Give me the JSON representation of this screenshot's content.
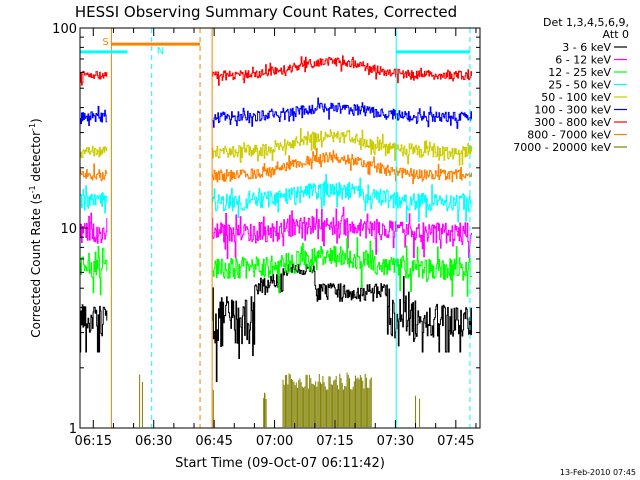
{
  "chart_data": {
    "type": "line",
    "title": "HESSI Observing Summary Count Rates, Corrected",
    "xlabel": "Start Time (09-Oct-07 06:11:42)",
    "ylabel": "Corrected Count Rate (s⁻¹ detector⁻¹)",
    "ylabel_plain": "Corrected Count Rate (s",
    "ylabel_sup1": "-1",
    "ylabel_mid": " detector",
    "ylabel_sup2": "-1",
    "ylabel_end": ")",
    "x_tick_labels": [
      "06:15",
      "06:30",
      "06:45",
      "07:00",
      "07:15",
      "07:30",
      "07:45"
    ],
    "x_tick_minutes": [
      15,
      30,
      45,
      60,
      75,
      90,
      105
    ],
    "x_range_minutes": [
      11.7,
      111
    ],
    "y_scale": "log",
    "y_tick_labels": [
      "1",
      "10",
      "100"
    ],
    "ylim": [
      1,
      100
    ],
    "legend_title_lines": [
      "Det 1,3,4,5,6,9,",
      "Att 0"
    ],
    "legend_placement": "right",
    "timestamp": "13-Feb-2010 07:45",
    "series": [
      {
        "name": "3 - 6 keV",
        "color": "#000000",
        "base": 3.5,
        "hump": 1.6,
        "noise": 0.28,
        "start": 11.7,
        "end": 109
      },
      {
        "name": "6 - 12 keV",
        "color": "#ff00ff",
        "base": 9.5,
        "hump": 0.9,
        "noise": 0.12,
        "start": 11.7,
        "end": 109
      },
      {
        "name": "12 - 25 keV",
        "color": "#00ff00",
        "base": 6.3,
        "hump": 0.9,
        "noise": 0.13,
        "start": 11.7,
        "end": 109
      },
      {
        "name": "25 - 50 keV",
        "color": "#00ffff",
        "base": 13.5,
        "hump": 2.0,
        "noise": 0.1,
        "start": 11.7,
        "end": 109
      },
      {
        "name": "50 - 100 keV",
        "color": "#cccc00",
        "base": 24,
        "hump": 5,
        "noise": 0.07,
        "start": 11.7,
        "end": 109
      },
      {
        "name": "100 - 300 keV",
        "color": "#0000ff",
        "base": 36,
        "hump": 4,
        "noise": 0.06,
        "start": 11.7,
        "end": 109
      },
      {
        "name": "300 - 800 keV",
        "color": "#ff0000",
        "base": 58,
        "hump": 10,
        "noise": 0.05,
        "start": 11.7,
        "end": 109
      },
      {
        "name": "800 - 7000 keV",
        "color": "#ff8000",
        "base": 18.5,
        "hump": 4,
        "noise": 0.06,
        "start": 11.7,
        "end": 109
      },
      {
        "name": "7000 - 20000 keV",
        "color": "#808000",
        "base": 1.0,
        "hump": 0,
        "noise": 0,
        "start": 11.7,
        "end": 109
      }
    ],
    "flag_labels": {
      "saa": "S",
      "night": "N"
    },
    "saa_bar": {
      "start": 19.5,
      "end": 41.5,
      "level": 83
    },
    "night_bars": [
      {
        "start": 11.7,
        "end": 23.5,
        "level": 76
      },
      {
        "start": 90.2,
        "end": 108.5,
        "level": 76
      }
    ],
    "orange_lines_solid": [
      19.5,
      44.5
    ],
    "orange_lines_dashed": [
      41.5
    ],
    "cyan_lines_solid": [
      11.7,
      90.2
    ],
    "cyan_lines_dashed": [
      29.5,
      108.5
    ],
    "data_gap": [
      18.5,
      44.5
    ]
  }
}
